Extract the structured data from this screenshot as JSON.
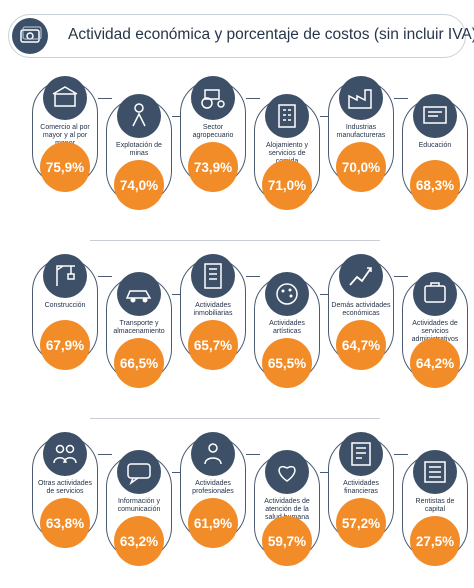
{
  "title": "Actividad económica y  porcentaje de costos (sin incluir IVA)",
  "accent_color": "#f28c28",
  "dark_color": "#3d5068",
  "chart_data": {
    "type": "table",
    "title": "Actividad económica y  porcentaje de costos (sin incluir IVA)",
    "items": [
      {
        "label": "Comercio al por mayor y al por menor",
        "value": "75,9%",
        "icon": "shop-icon"
      },
      {
        "label": "Explotación de minas",
        "value": "74,0%",
        "icon": "miner-icon"
      },
      {
        "label": "Sector agropecuario",
        "value": "73,9%",
        "icon": "tractor-icon"
      },
      {
        "label": "Alojamiento y servicios de comida",
        "value": "71,0%",
        "icon": "hotel-icon"
      },
      {
        "label": "Industrias manufactureras",
        "value": "70,0%",
        "icon": "factory-icon"
      },
      {
        "label": "Educación",
        "value": "68,3%",
        "icon": "education-icon"
      },
      {
        "label": "Construcción",
        "value": "67,9%",
        "icon": "crane-icon"
      },
      {
        "label": "Transporte y almacenamiento",
        "value": "66,5%",
        "icon": "car-icon"
      },
      {
        "label": "Actividades inmobiliarias",
        "value": "65,7%",
        "icon": "building-icon"
      },
      {
        "label": "Actividades artísticas",
        "value": "65,5%",
        "icon": "palette-icon"
      },
      {
        "label": "Demás actividades económicas",
        "value": "64,7%",
        "icon": "growth-chart-icon"
      },
      {
        "label": "Actividades de servicios administrativos",
        "value": "64,2%",
        "icon": "admin-icon"
      },
      {
        "label": "Otras actividades de servicios",
        "value": "63,8%",
        "icon": "people-icon"
      },
      {
        "label": "Información y comunicación",
        "value": "63,2%",
        "icon": "communication-icon"
      },
      {
        "label": "Actividades profesionales",
        "value": "61,9%",
        "icon": "professional-icon"
      },
      {
        "label": "Actividades de atención de la salud humana",
        "value": "59,7%",
        "icon": "health-icon"
      },
      {
        "label": "Actividades financieras",
        "value": "57,2%",
        "icon": "finance-icon"
      },
      {
        "label": "Rentistas de capital",
        "value": "27,5%",
        "icon": "capital-icon"
      }
    ]
  }
}
